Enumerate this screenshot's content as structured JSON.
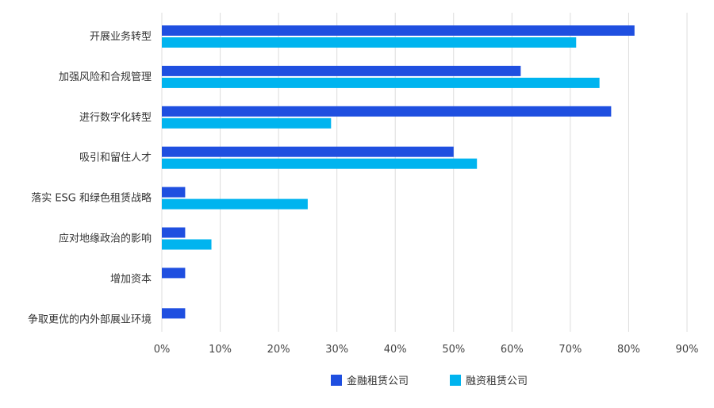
{
  "chart_data": {
    "type": "bar",
    "orientation": "horizontal",
    "categories": [
      "开展业务转型",
      "加强风险和合规管理",
      "进行数字化转型",
      "吸引和留住人才",
      "落实 ESG 和绿色租赁战略",
      "应对地缘政治的影响",
      "增加资本",
      "争取更优的内外部展业环境"
    ],
    "series": [
      {
        "name": "金融租赁公司",
        "color": "#1f4fe0",
        "values": [
          81,
          61.5,
          77,
          50,
          4,
          4,
          4,
          4
        ]
      },
      {
        "name": "融资租赁公司",
        "color": "#00b4ef",
        "values": [
          71,
          75,
          29,
          54,
          25,
          8.5,
          null,
          null
        ]
      }
    ],
    "xlim": [
      0,
      90
    ],
    "x_ticks": [
      "0%",
      "10%",
      "20%",
      "30%",
      "40%",
      "50%",
      "60%",
      "70%",
      "80%",
      "90%"
    ],
    "grid": "vertical",
    "grid_color": "#dcdcdc",
    "legend": "bottom-center"
  }
}
